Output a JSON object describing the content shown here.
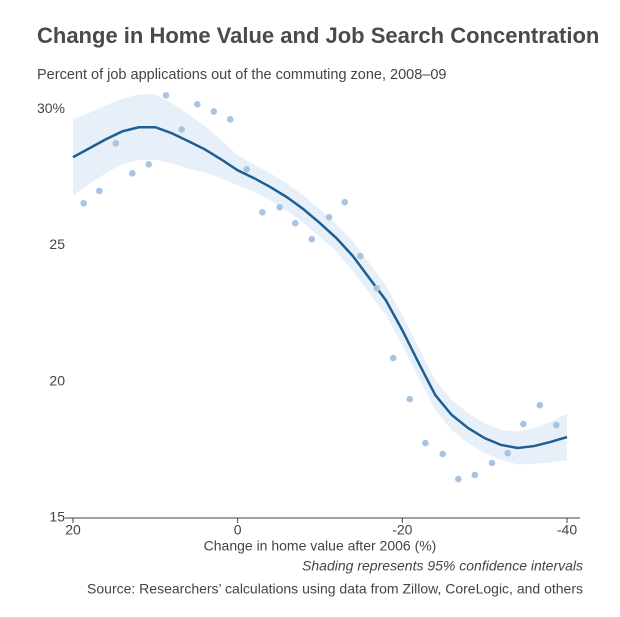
{
  "chart_data": {
    "type": "scatter",
    "title": "Change in Home Value and Job Search Concentration",
    "subtitle": "Percent of job applications out of the commuting zone, 2008–09",
    "x_label": "Change in home value after 2006 (%)",
    "note": "Shading represents 95% confidence intervals",
    "source": "Source: Researchers’ calculations using data from Zillow, CoreLogic, and others",
    "xlim": [
      20,
      -40
    ],
    "xticks": [
      20,
      0,
      -20,
      -40
    ],
    "ylim": [
      15,
      31
    ],
    "yticks": [
      15,
      20,
      25,
      {
        "value": 30,
        "label": "30%"
      }
    ],
    "series": [
      {
        "type": "band",
        "color": "#e7eff9",
        "x": [
          20,
          18,
          16,
          14,
          12,
          10,
          8,
          6,
          4,
          2,
          0,
          -2,
          -4,
          -6,
          -8,
          -10,
          -12,
          -14,
          -16,
          -18,
          -20,
          -22,
          -24,
          -26,
          -28,
          -30,
          -32,
          -34,
          -36,
          -38,
          -40
        ],
        "lower": [
          26.84,
          27.27,
          27.65,
          27.99,
          28.14,
          28.14,
          28.02,
          27.83,
          27.68,
          27.46,
          27.21,
          26.97,
          26.64,
          26.27,
          25.83,
          25.32,
          24.77,
          24.06,
          23.25,
          22.44,
          21.34,
          20.13,
          18.96,
          18.23,
          17.75,
          17.38,
          17.13,
          16.97,
          16.99,
          17.04,
          17.12
        ],
        "upper": [
          29.64,
          29.87,
          30.15,
          30.39,
          30.54,
          30.54,
          30.22,
          29.83,
          29.38,
          28.86,
          28.31,
          27.97,
          27.64,
          27.27,
          26.83,
          26.32,
          25.77,
          25.16,
          24.35,
          23.54,
          22.44,
          21.23,
          20.06,
          19.33,
          18.85,
          18.48,
          18.23,
          18.17,
          18.29,
          18.54,
          18.82
        ]
      },
      {
        "type": "line",
        "color": "#1d5f93",
        "x": [
          20,
          18,
          16,
          14,
          12,
          10,
          8,
          6,
          4,
          2,
          0,
          -2,
          -4,
          -6,
          -8,
          -10,
          -12,
          -14,
          -16,
          -18,
          -20,
          -22,
          -24,
          -26,
          -28,
          -30,
          -32,
          -34,
          -36,
          -38,
          -40
        ],
        "values": [
          28.24,
          28.57,
          28.9,
          29.19,
          29.34,
          29.34,
          29.12,
          28.83,
          28.53,
          28.16,
          27.76,
          27.47,
          27.14,
          26.77,
          26.33,
          25.82,
          25.27,
          24.61,
          23.8,
          22.99,
          21.89,
          20.68,
          19.51,
          18.78,
          18.3,
          17.93,
          17.68,
          17.57,
          17.64,
          17.79,
          17.97
        ]
      },
      {
        "type": "points",
        "color": "#a9c4e3",
        "x": [
          18.7,
          16.8,
          14.8,
          12.8,
          10.8,
          8.7,
          6.8,
          4.9,
          2.9,
          0.9,
          -1.1,
          -3.0,
          -5.1,
          -7.0,
          -9.0,
          -11.1,
          -13.0,
          -14.9,
          -16.9,
          -18.9,
          -20.9,
          -22.8,
          -24.9,
          -26.8,
          -28.8,
          -30.9,
          -32.8,
          -34.7,
          -36.7,
          -38.7
        ],
        "values": [
          26.55,
          27.0,
          28.75,
          27.65,
          27.98,
          30.51,
          29.26,
          30.18,
          29.92,
          29.63,
          27.8,
          26.22,
          26.4,
          25.82,
          25.23,
          26.04,
          26.59,
          24.61,
          23.43,
          20.87,
          19.36,
          17.75,
          17.35,
          16.43,
          16.58,
          17.02,
          17.38,
          18.45,
          19.14,
          18.41
        ]
      }
    ]
  }
}
